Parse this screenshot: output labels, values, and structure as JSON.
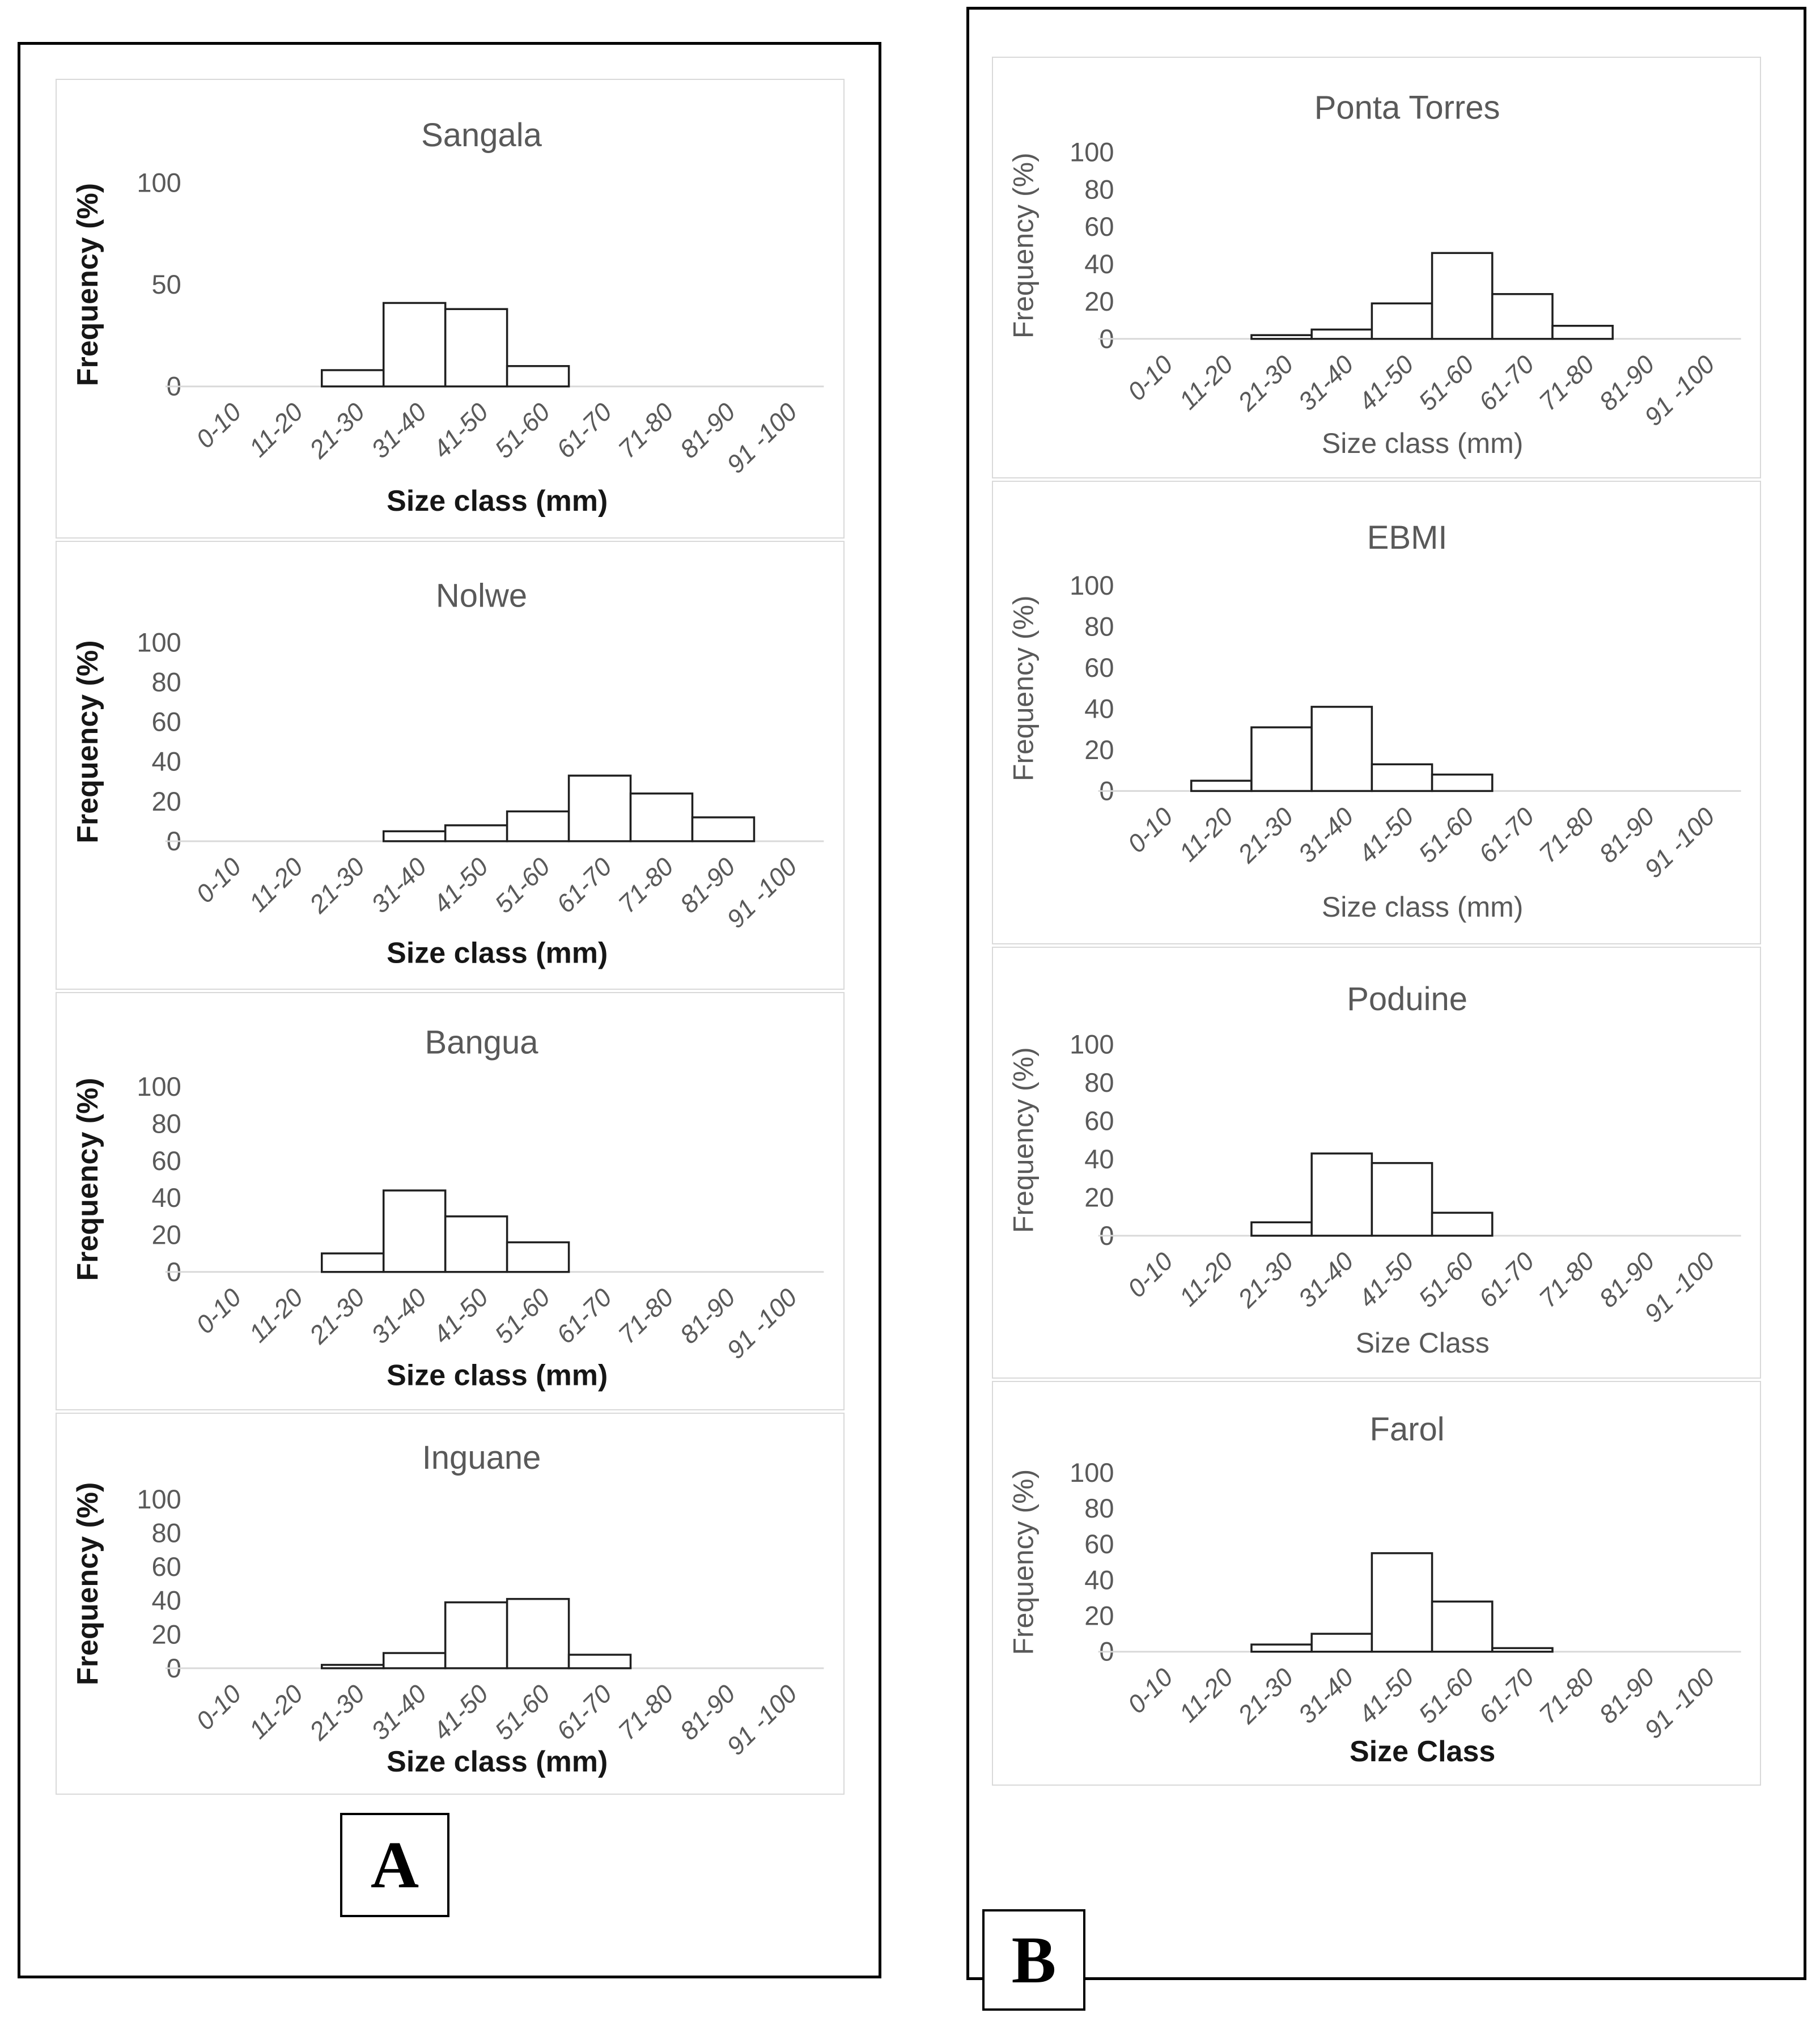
{
  "figure": {
    "panel_a": {
      "label": "A"
    },
    "panel_b": {
      "label": "B"
    }
  },
  "colors": {
    "bar_fill": "#ffffff",
    "bar_outline": "#1f1f1f",
    "axis_line": "#d9d9d9",
    "text_gray": "#595959",
    "panel_border": "#000000"
  },
  "chart_data": [
    {
      "panel": "A",
      "type": "bar",
      "title": "Sangala",
      "categories": [
        "0-10",
        "11-20",
        "21-30",
        "31-40",
        "41-50",
        "51-60",
        "61-70",
        "71-80",
        "81-90",
        "91 -100"
      ],
      "values": [
        0,
        0,
        8,
        41,
        38,
        10,
        0,
        0,
        0,
        0
      ],
      "yticks": [
        0,
        50,
        100
      ],
      "ylim": [
        0,
        100
      ],
      "xlabel": "Size class (mm)",
      "ylabel": "Frequency (%)",
      "ylabel_style": "bold",
      "xlabel_style": "bold",
      "grid": false,
      "legend": false
    },
    {
      "panel": "A",
      "type": "bar",
      "title": "Nolwe",
      "categories": [
        "0-10",
        "11-20",
        "21-30",
        "31-40",
        "41-50",
        "51-60",
        "61-70",
        "71-80",
        "81-90",
        "91 -100"
      ],
      "values": [
        0,
        0,
        0,
        5,
        8,
        15,
        33,
        24,
        12,
        0
      ],
      "yticks": [
        0,
        20,
        40,
        60,
        80,
        100
      ],
      "ylim": [
        0,
        100
      ],
      "xlabel": "Size class (mm)",
      "ylabel": "Frequency (%)",
      "ylabel_style": "bold",
      "xlabel_style": "bold",
      "grid": false,
      "legend": false
    },
    {
      "panel": "A",
      "type": "bar",
      "title": "Bangua",
      "categories": [
        "0-10",
        "11-20",
        "21-30",
        "31-40",
        "41-50",
        "51-60",
        "61-70",
        "71-80",
        "81-90",
        "91 -100"
      ],
      "values": [
        0,
        0,
        10,
        44,
        30,
        16,
        0,
        0,
        0,
        0
      ],
      "yticks": [
        0,
        20,
        40,
        60,
        80,
        100
      ],
      "ylim": [
        0,
        100
      ],
      "xlabel": "Size class (mm)",
      "ylabel": "Frequency (%)",
      "ylabel_style": "bold",
      "xlabel_style": "bold",
      "grid": false,
      "legend": false
    },
    {
      "panel": "A",
      "type": "bar",
      "title": "Inguane",
      "categories": [
        "0-10",
        "11-20",
        "21-30",
        "31-40",
        "41-50",
        "51-60",
        "61-70",
        "71-80",
        "81-90",
        "91 -100"
      ],
      "values": [
        0,
        0,
        2,
        9,
        39,
        41,
        8,
        0,
        0,
        0
      ],
      "yticks": [
        0,
        20,
        40,
        60,
        80,
        100
      ],
      "ylim": [
        0,
        100
      ],
      "xlabel": "Size class (mm)",
      "ylabel": "Frequency (%)",
      "ylabel_style": "bold",
      "xlabel_style": "bold",
      "grid": false,
      "legend": false
    },
    {
      "panel": "B",
      "type": "bar",
      "title": "Ponta Torres",
      "categories": [
        "0-10",
        "11-20",
        "21-30",
        "31-40",
        "41-50",
        "51-60",
        "61-70",
        "71-80",
        "81-90",
        "91 -100"
      ],
      "values": [
        0,
        0,
        2,
        5,
        19,
        46,
        24,
        7,
        0,
        0
      ],
      "yticks": [
        0,
        20,
        40,
        60,
        80,
        100
      ],
      "ylim": [
        0,
        100
      ],
      "xlabel": "Size class (mm)",
      "ylabel": "Frequency (%)",
      "ylabel_style": "gray",
      "xlabel_style": "gray",
      "grid": false,
      "legend": false
    },
    {
      "panel": "B",
      "type": "bar",
      "title": "EBMI",
      "categories": [
        "0-10",
        "11-20",
        "21-30",
        "31-40",
        "41-50",
        "51-60",
        "61-70",
        "71-80",
        "81-90",
        "91 -100"
      ],
      "values": [
        0,
        5,
        31,
        41,
        13,
        8,
        0,
        0,
        0,
        0
      ],
      "yticks": [
        0,
        20,
        40,
        60,
        80,
        100
      ],
      "ylim": [
        0,
        100
      ],
      "xlabel": "Size class (mm)",
      "ylabel": "Frequency (%)",
      "ylabel_style": "gray",
      "xlabel_style": "gray",
      "grid": false,
      "legend": false
    },
    {
      "panel": "B",
      "type": "bar",
      "title": "Poduine",
      "categories": [
        "0-10",
        "11-20",
        "21-30",
        "31-40",
        "41-50",
        "51-60",
        "61-70",
        "71-80",
        "81-90",
        "91 -100"
      ],
      "values": [
        0,
        0,
        7,
        43,
        38,
        12,
        0,
        0,
        0,
        0
      ],
      "yticks": [
        0,
        20,
        40,
        60,
        80,
        100
      ],
      "ylim": [
        0,
        100
      ],
      "xlabel": "Size Class",
      "ylabel": "Frequency (%)",
      "ylabel_style": "gray",
      "xlabel_style": "gray",
      "grid": false,
      "legend": false
    },
    {
      "panel": "B",
      "type": "bar",
      "title": "Farol",
      "categories": [
        "0-10",
        "11-20",
        "21-30",
        "31-40",
        "41-50",
        "51-60",
        "61-70",
        "71-80",
        "81-90",
        "91 -100"
      ],
      "values": [
        0,
        0,
        4,
        10,
        55,
        28,
        2,
        0,
        0,
        0
      ],
      "yticks": [
        0,
        20,
        40,
        60,
        80,
        100
      ],
      "ylim": [
        0,
        100
      ],
      "xlabel": "Size Class",
      "ylabel": "Frequency (%)",
      "ylabel_style": "gray",
      "xlabel_style": "bold",
      "grid": false,
      "legend": false
    }
  ]
}
